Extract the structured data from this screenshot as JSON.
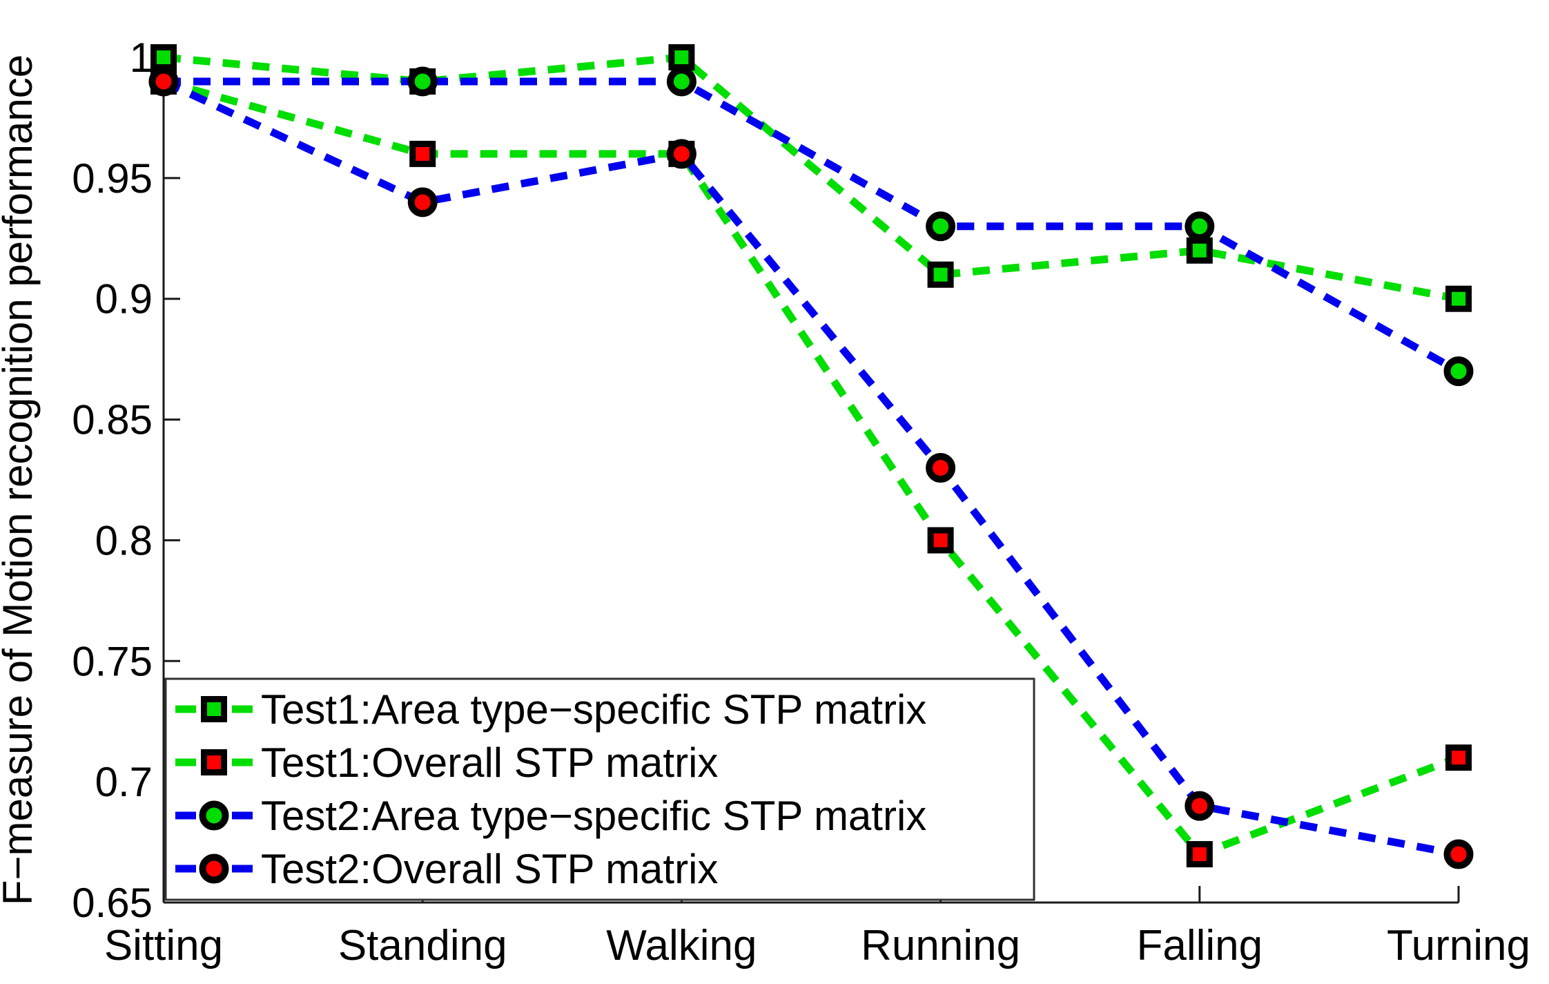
{
  "figure": {
    "background": "#ffffff",
    "axis_color": "#1a1a1a"
  },
  "chart_data": {
    "type": "line",
    "title": "",
    "xlabel": "",
    "ylabel": "F−measure of Motion recognition performance",
    "categories": [
      "Sitting",
      "Standing",
      "Walking",
      "Running",
      "Falling",
      "Turning"
    ],
    "series": [
      {
        "name": "Test1:Area type−specific STP matrix",
        "line_color": "#00dd00",
        "line_style": "dashed",
        "marker": "square",
        "marker_fill": "#00dd00",
        "marker_edge": "#000000",
        "values": [
          1.0,
          0.99,
          1.0,
          0.91,
          0.92,
          0.9
        ]
      },
      {
        "name": "Test1:Overall STP matrix",
        "line_color": "#00dd00",
        "line_style": "dashed",
        "marker": "square",
        "marker_fill": "#ff0000",
        "marker_edge": "#000000",
        "values": [
          0.99,
          0.96,
          0.96,
          0.8,
          0.67,
          0.71
        ]
      },
      {
        "name": "Test2:Area type−specific STP matrix",
        "line_color": "#0000ee",
        "line_style": "dashed",
        "marker": "circle",
        "marker_fill": "#00dd00",
        "marker_edge": "#000000",
        "values": [
          0.99,
          0.99,
          0.99,
          0.93,
          0.93,
          0.87
        ]
      },
      {
        "name": "Test2:Overall STP matrix",
        "line_color": "#0000ee",
        "line_style": "dashed",
        "marker": "circle",
        "marker_fill": "#ff0000",
        "marker_edge": "#000000",
        "values": [
          0.99,
          0.94,
          0.96,
          0.83,
          0.69,
          0.67
        ]
      }
    ],
    "y_ticks": [
      {
        "v": 1.0,
        "label": "1"
      },
      {
        "v": 0.95,
        "label": "0.95"
      },
      {
        "v": 0.9,
        "label": "0.9"
      },
      {
        "v": 0.85,
        "label": "0.85"
      },
      {
        "v": 0.8,
        "label": "0.8"
      },
      {
        "v": 0.75,
        "label": "0.75"
      },
      {
        "v": 0.7,
        "label": "0.7"
      },
      {
        "v": 0.65,
        "label": "0.65"
      }
    ],
    "ylim": [
      0.65,
      1.0
    ],
    "grid": false,
    "legend_position": "bottom-left"
  }
}
